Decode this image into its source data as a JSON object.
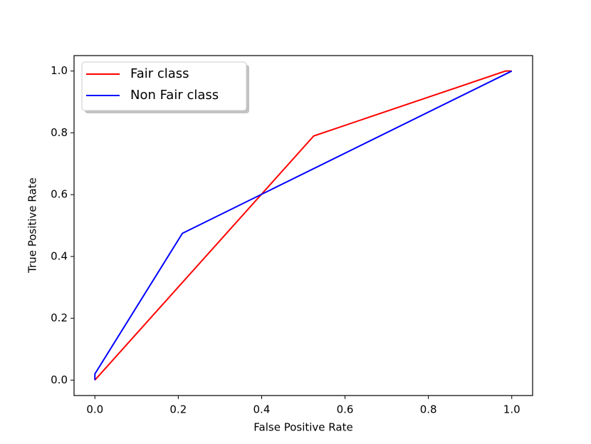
{
  "chart_data": {
    "type": "line",
    "xlabel": "False Positive Rate",
    "ylabel": "True Positive Rate",
    "xlim": [
      -0.05,
      1.05
    ],
    "ylim": [
      -0.05,
      1.05
    ],
    "xticks": [
      {
        "value": 0,
        "label": "0.0"
      },
      {
        "value": 0.2,
        "label": "0.2"
      },
      {
        "value": 0.4,
        "label": "0.4"
      },
      {
        "value": 0.6,
        "label": "0.6"
      },
      {
        "value": 0.8,
        "label": "0.8"
      },
      {
        "value": 1,
        "label": "1.0"
      }
    ],
    "yticks": [
      {
        "value": 0,
        "label": "0.0"
      },
      {
        "value": 0.2,
        "label": "0.2"
      },
      {
        "value": 0.4,
        "label": "0.4"
      },
      {
        "value": 0.6,
        "label": "0.6"
      },
      {
        "value": 0.8,
        "label": "0.8"
      },
      {
        "value": 1,
        "label": "1.0"
      }
    ],
    "grid": false,
    "legend": "upper left",
    "series": [
      {
        "name": "Fair class",
        "color": "#ff0000",
        "x": [
          0,
          0.525,
          0.985,
          1
        ],
        "values": [
          0,
          0.79,
          1,
          1
        ]
      },
      {
        "name": "Non Fair class",
        "color": "#0000ff",
        "x": [
          0,
          0,
          0.21,
          1
        ],
        "values": [
          0,
          0.02,
          0.475,
          1
        ]
      }
    ]
  }
}
